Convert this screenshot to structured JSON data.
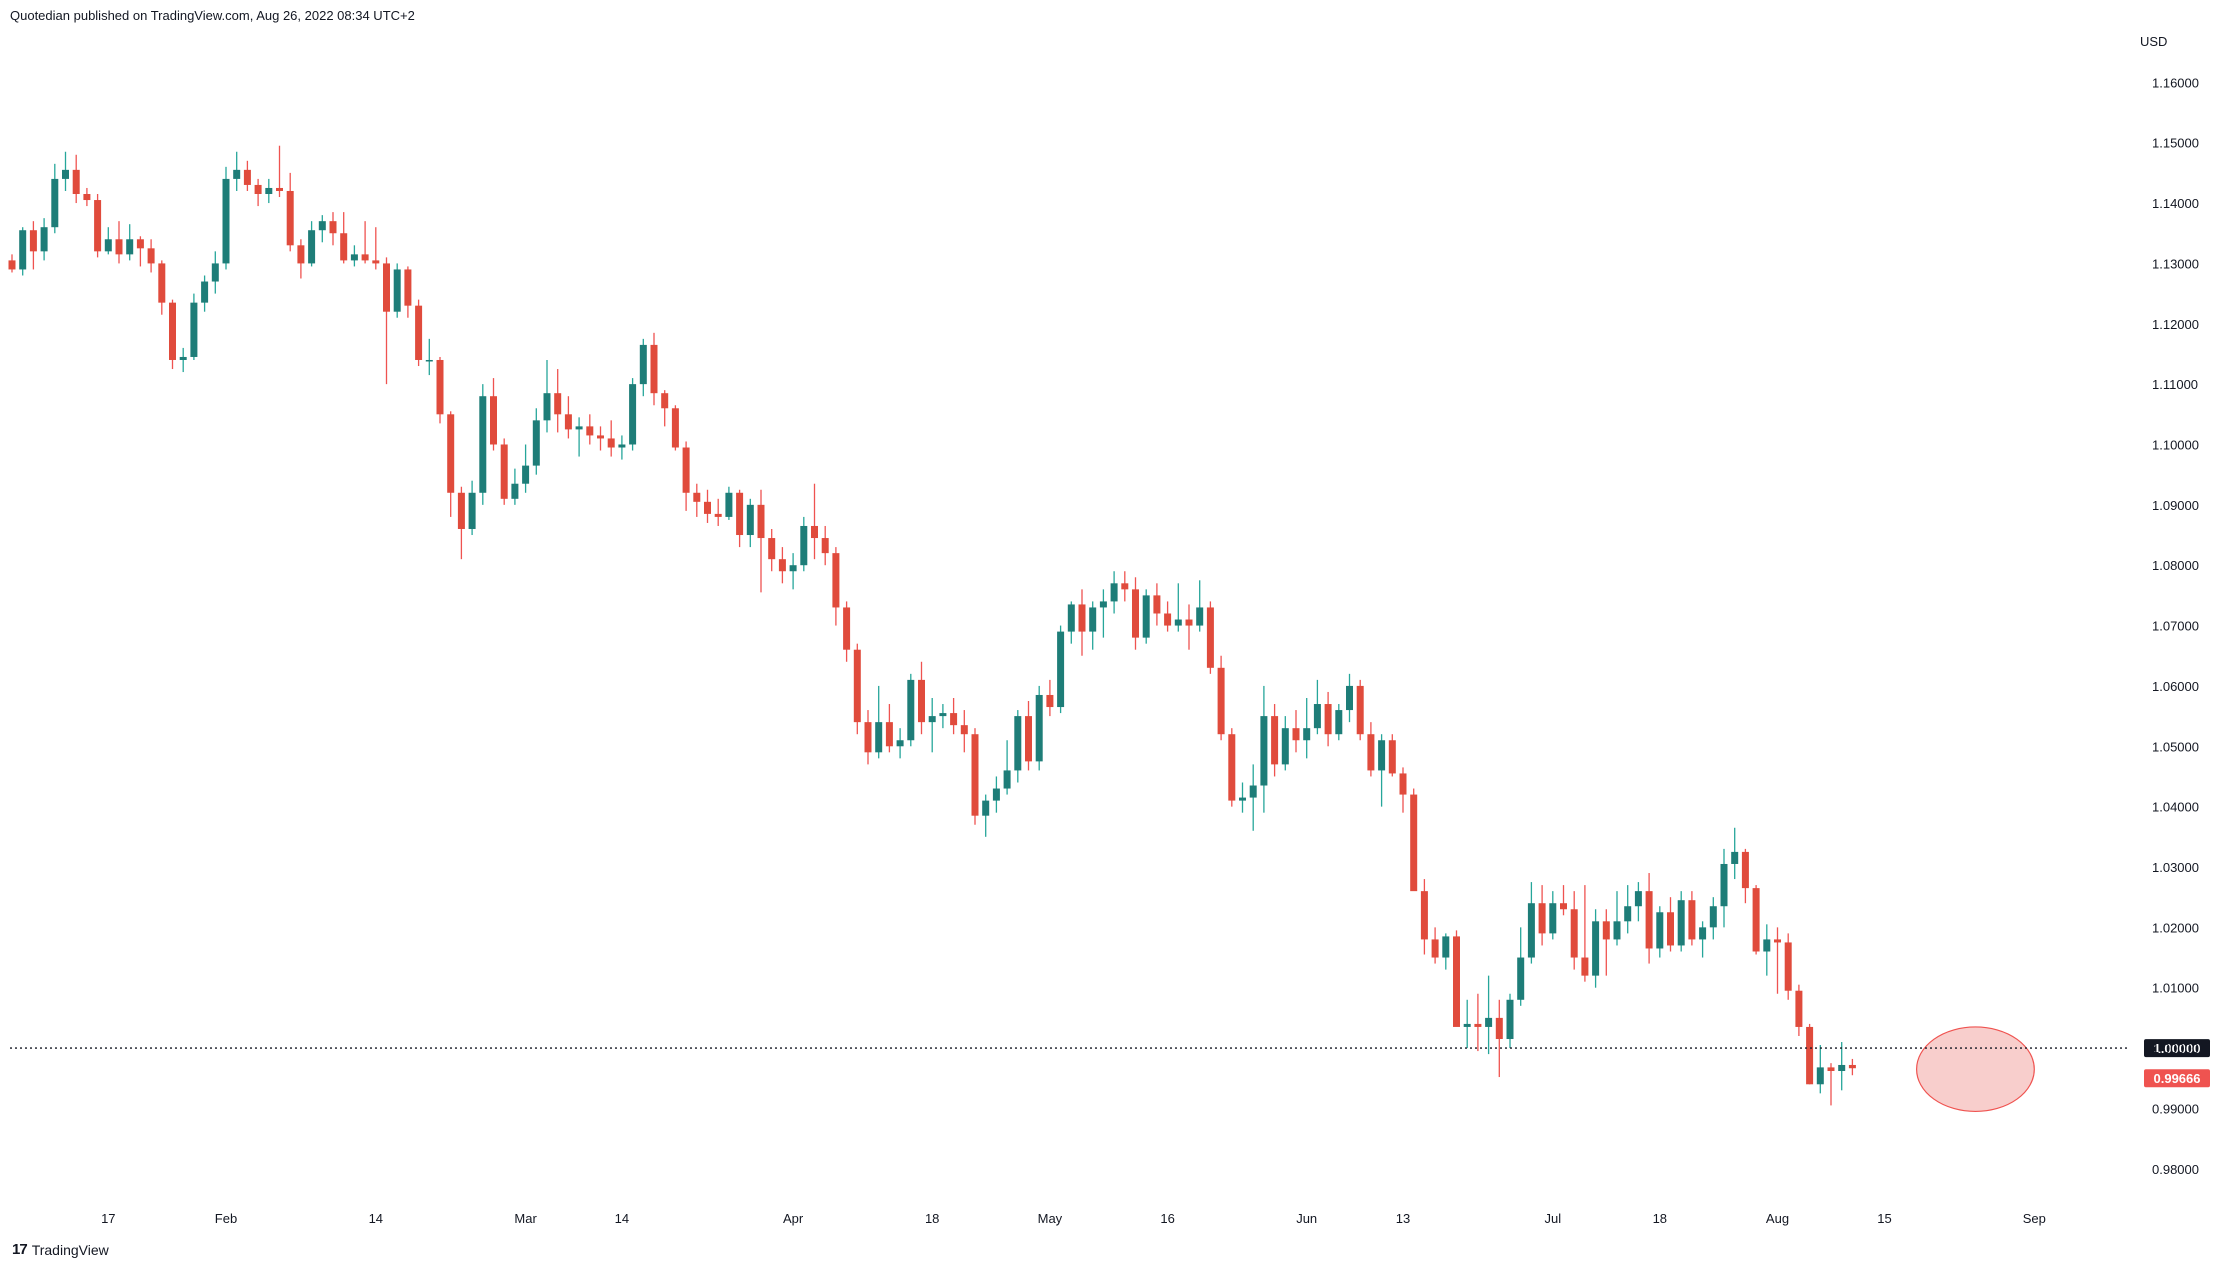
{
  "caption": "Quotedian published on TradingView.com, Aug 26, 2022 08:34 UTC+2",
  "footer_brand": "TradingView",
  "colors": {
    "up": "#26a69a",
    "up_body": "#1e7d78",
    "down": "#ef5350",
    "down_body": "#e04b3c",
    "axis_text": "#131722",
    "price_line": "#131722",
    "last_price_badge": "#ef5350",
    "level_badge": "#131722",
    "highlight_fill": "#f7c6c3",
    "highlight_stroke": "#ef5350"
  },
  "chart_data": {
    "type": "candlestick",
    "currency_label": "USD",
    "ylim": [
      0.974,
      1.1695
    ],
    "y_ticks": [
      "1.16000",
      "1.15000",
      "1.14000",
      "1.13000",
      "1.12000",
      "1.11000",
      "1.10000",
      "1.09000",
      "1.08000",
      "1.07000",
      "1.06000",
      "1.05000",
      "1.04000",
      "1.03000",
      "1.02000",
      "1.01000",
      "1.00000",
      "0.99000",
      "0.98000"
    ],
    "x_labels": [
      {
        "label": "17",
        "index": 9
      },
      {
        "label": "Feb",
        "index": 20
      },
      {
        "label": "14",
        "index": 34
      },
      {
        "label": "Mar",
        "index": 48
      },
      {
        "label": "14",
        "index": 57
      },
      {
        "label": "Apr",
        "index": 73
      },
      {
        "label": "18",
        "index": 86
      },
      {
        "label": "May",
        "index": 97
      },
      {
        "label": "16",
        "index": 108
      },
      {
        "label": "Jun",
        "index": 121
      },
      {
        "label": "13",
        "index": 130
      },
      {
        "label": "Jul",
        "index": 144
      },
      {
        "label": "18",
        "index": 154
      },
      {
        "label": "Aug",
        "index": 165
      },
      {
        "label": "15",
        "index": 175
      },
      {
        "label": "Sep",
        "index": 189
      }
    ],
    "horizontal_level": {
      "value": 1.0,
      "label": "1.00000",
      "style": "dotted"
    },
    "last_price": {
      "value": 0.99666,
      "label": "0.99666"
    },
    "highlight": {
      "center_index": 183.5,
      "center_value": 0.9965,
      "radius_bars": 5.5,
      "radius_value": 0.007
    },
    "candles": [
      {
        "o": 1.1305,
        "h": 1.1315,
        "l": 1.1285,
        "c": 1.129
      },
      {
        "o": 1.129,
        "h": 1.136,
        "l": 1.128,
        "c": 1.1355
      },
      {
        "o": 1.1355,
        "h": 1.137,
        "l": 1.129,
        "c": 1.132
      },
      {
        "o": 1.132,
        "h": 1.1375,
        "l": 1.1305,
        "c": 1.136
      },
      {
        "o": 1.136,
        "h": 1.1465,
        "l": 1.135,
        "c": 1.144
      },
      {
        "o": 1.144,
        "h": 1.1485,
        "l": 1.142,
        "c": 1.1455
      },
      {
        "o": 1.1455,
        "h": 1.148,
        "l": 1.14,
        "c": 1.1415
      },
      {
        "o": 1.1415,
        "h": 1.1425,
        "l": 1.1395,
        "c": 1.1405
      },
      {
        "o": 1.1405,
        "h": 1.1415,
        "l": 1.131,
        "c": 1.132
      },
      {
        "o": 1.132,
        "h": 1.136,
        "l": 1.1315,
        "c": 1.134
      },
      {
        "o": 1.134,
        "h": 1.137,
        "l": 1.13,
        "c": 1.1315
      },
      {
        "o": 1.1315,
        "h": 1.1365,
        "l": 1.1305,
        "c": 1.134
      },
      {
        "o": 1.134,
        "h": 1.1345,
        "l": 1.1295,
        "c": 1.1325
      },
      {
        "o": 1.1325,
        "h": 1.134,
        "l": 1.1285,
        "c": 1.13
      },
      {
        "o": 1.13,
        "h": 1.1305,
        "l": 1.1215,
        "c": 1.1235
      },
      {
        "o": 1.1235,
        "h": 1.124,
        "l": 1.1125,
        "c": 1.114
      },
      {
        "o": 1.114,
        "h": 1.116,
        "l": 1.112,
        "c": 1.1145
      },
      {
        "o": 1.1145,
        "h": 1.125,
        "l": 1.114,
        "c": 1.1235
      },
      {
        "o": 1.1235,
        "h": 1.128,
        "l": 1.122,
        "c": 1.127
      },
      {
        "o": 1.127,
        "h": 1.132,
        "l": 1.125,
        "c": 1.13
      },
      {
        "o": 1.13,
        "h": 1.146,
        "l": 1.129,
        "c": 1.144
      },
      {
        "o": 1.144,
        "h": 1.1485,
        "l": 1.142,
        "c": 1.1455
      },
      {
        "o": 1.1455,
        "h": 1.147,
        "l": 1.142,
        "c": 1.143
      },
      {
        "o": 1.143,
        "h": 1.144,
        "l": 1.1395,
        "c": 1.1415
      },
      {
        "o": 1.1415,
        "h": 1.144,
        "l": 1.14,
        "c": 1.1425
      },
      {
        "o": 1.1425,
        "h": 1.1495,
        "l": 1.141,
        "c": 1.142
      },
      {
        "o": 1.142,
        "h": 1.145,
        "l": 1.132,
        "c": 1.133
      },
      {
        "o": 1.133,
        "h": 1.134,
        "l": 1.1275,
        "c": 1.13
      },
      {
        "o": 1.13,
        "h": 1.137,
        "l": 1.1295,
        "c": 1.1355
      },
      {
        "o": 1.1355,
        "h": 1.138,
        "l": 1.1335,
        "c": 1.137
      },
      {
        "o": 1.137,
        "h": 1.1385,
        "l": 1.133,
        "c": 1.135
      },
      {
        "o": 1.135,
        "h": 1.1385,
        "l": 1.13,
        "c": 1.1305
      },
      {
        "o": 1.1305,
        "h": 1.133,
        "l": 1.1295,
        "c": 1.1315
      },
      {
        "o": 1.1315,
        "h": 1.137,
        "l": 1.13,
        "c": 1.1305
      },
      {
        "o": 1.1305,
        "h": 1.136,
        "l": 1.129,
        "c": 1.13
      },
      {
        "o": 1.13,
        "h": 1.131,
        "l": 1.11,
        "c": 1.122
      },
      {
        "o": 1.122,
        "h": 1.13,
        "l": 1.121,
        "c": 1.129
      },
      {
        "o": 1.129,
        "h": 1.1295,
        "l": 1.121,
        "c": 1.123
      },
      {
        "o": 1.123,
        "h": 1.124,
        "l": 1.113,
        "c": 1.114
      },
      {
        "o": 1.114,
        "h": 1.1175,
        "l": 1.1115,
        "c": 1.114
      },
      {
        "o": 1.114,
        "h": 1.1145,
        "l": 1.1035,
        "c": 1.105
      },
      {
        "o": 1.105,
        "h": 1.1055,
        "l": 1.088,
        "c": 1.092
      },
      {
        "o": 1.092,
        "h": 1.093,
        "l": 1.081,
        "c": 1.086
      },
      {
        "o": 1.086,
        "h": 1.094,
        "l": 1.085,
        "c": 1.092
      },
      {
        "o": 1.092,
        "h": 1.11,
        "l": 1.09,
        "c": 1.108
      },
      {
        "o": 1.108,
        "h": 1.111,
        "l": 1.099,
        "c": 1.1
      },
      {
        "o": 1.1,
        "h": 1.101,
        "l": 1.09,
        "c": 1.091
      },
      {
        "o": 1.091,
        "h": 1.096,
        "l": 1.09,
        "c": 1.0935
      },
      {
        "o": 1.0935,
        "h": 1.1,
        "l": 1.092,
        "c": 1.0965
      },
      {
        "o": 1.0965,
        "h": 1.106,
        "l": 1.095,
        "c": 1.104
      },
      {
        "o": 1.104,
        "h": 1.114,
        "l": 1.102,
        "c": 1.1085
      },
      {
        "o": 1.1085,
        "h": 1.1125,
        "l": 1.102,
        "c": 1.105
      },
      {
        "o": 1.105,
        "h": 1.108,
        "l": 1.101,
        "c": 1.1025
      },
      {
        "o": 1.1025,
        "h": 1.1045,
        "l": 1.098,
        "c": 1.103
      },
      {
        "o": 1.103,
        "h": 1.105,
        "l": 1.1,
        "c": 1.1015
      },
      {
        "o": 1.1015,
        "h": 1.103,
        "l": 1.099,
        "c": 1.101
      },
      {
        "o": 1.101,
        "h": 1.104,
        "l": 1.098,
        "c": 1.0995
      },
      {
        "o": 1.0995,
        "h": 1.1015,
        "l": 1.0975,
        "c": 1.1
      },
      {
        "o": 1.1,
        "h": 1.111,
        "l": 1.099,
        "c": 1.11
      },
      {
        "o": 1.11,
        "h": 1.1175,
        "l": 1.108,
        "c": 1.1165
      },
      {
        "o": 1.1165,
        "h": 1.1185,
        "l": 1.1065,
        "c": 1.1085
      },
      {
        "o": 1.1085,
        "h": 1.109,
        "l": 1.103,
        "c": 1.106
      },
      {
        "o": 1.106,
        "h": 1.1065,
        "l": 1.099,
        "c": 1.0995
      },
      {
        "o": 1.0995,
        "h": 1.1005,
        "l": 1.089,
        "c": 1.092
      },
      {
        "o": 1.092,
        "h": 1.0935,
        "l": 1.088,
        "c": 1.0905
      },
      {
        "o": 1.0905,
        "h": 1.0925,
        "l": 1.087,
        "c": 1.0885
      },
      {
        "o": 1.0885,
        "h": 1.091,
        "l": 1.0865,
        "c": 1.088
      },
      {
        "o": 1.088,
        "h": 1.093,
        "l": 1.0875,
        "c": 1.092
      },
      {
        "o": 1.092,
        "h": 1.0925,
        "l": 1.083,
        "c": 1.085
      },
      {
        "o": 1.085,
        "h": 1.091,
        "l": 1.083,
        "c": 1.09
      },
      {
        "o": 1.09,
        "h": 1.0925,
        "l": 1.0755,
        "c": 1.0845
      },
      {
        "o": 1.0845,
        "h": 1.086,
        "l": 1.079,
        "c": 1.081
      },
      {
        "o": 1.081,
        "h": 1.083,
        "l": 1.077,
        "c": 1.079
      },
      {
        "o": 1.079,
        "h": 1.082,
        "l": 1.076,
        "c": 1.08
      },
      {
        "o": 1.08,
        "h": 1.088,
        "l": 1.079,
        "c": 1.0865
      },
      {
        "o": 1.0865,
        "h": 1.0935,
        "l": 1.081,
        "c": 1.0845
      },
      {
        "o": 1.0845,
        "h": 1.0865,
        "l": 1.08,
        "c": 1.082
      },
      {
        "o": 1.082,
        "h": 1.083,
        "l": 1.07,
        "c": 1.073
      },
      {
        "o": 1.073,
        "h": 1.074,
        "l": 1.064,
        "c": 1.066
      },
      {
        "o": 1.066,
        "h": 1.067,
        "l": 1.052,
        "c": 1.054
      },
      {
        "o": 1.054,
        "h": 1.056,
        "l": 1.047,
        "c": 1.049
      },
      {
        "o": 1.049,
        "h": 1.06,
        "l": 1.048,
        "c": 1.054
      },
      {
        "o": 1.054,
        "h": 1.057,
        "l": 1.049,
        "c": 1.05
      },
      {
        "o": 1.05,
        "h": 1.053,
        "l": 1.048,
        "c": 1.051
      },
      {
        "o": 1.051,
        "h": 1.062,
        "l": 1.05,
        "c": 1.061
      },
      {
        "o": 1.061,
        "h": 1.064,
        "l": 1.052,
        "c": 1.054
      },
      {
        "o": 1.054,
        "h": 1.058,
        "l": 1.049,
        "c": 1.055
      },
      {
        "o": 1.055,
        "h": 1.057,
        "l": 1.053,
        "c": 1.0555
      },
      {
        "o": 1.0555,
        "h": 1.058,
        "l": 1.052,
        "c": 1.0535
      },
      {
        "o": 1.0535,
        "h": 1.056,
        "l": 1.049,
        "c": 1.052
      },
      {
        "o": 1.052,
        "h": 1.053,
        "l": 1.037,
        "c": 1.0385
      },
      {
        "o": 1.0385,
        "h": 1.042,
        "l": 1.035,
        "c": 1.041
      },
      {
        "o": 1.041,
        "h": 1.045,
        "l": 1.039,
        "c": 1.043
      },
      {
        "o": 1.043,
        "h": 1.051,
        "l": 1.042,
        "c": 1.046
      },
      {
        "o": 1.046,
        "h": 1.056,
        "l": 1.044,
        "c": 1.055
      },
      {
        "o": 1.055,
        "h": 1.0575,
        "l": 1.046,
        "c": 1.0475
      },
      {
        "o": 1.0475,
        "h": 1.06,
        "l": 1.046,
        "c": 1.0585
      },
      {
        "o": 1.0585,
        "h": 1.061,
        "l": 1.055,
        "c": 1.0565
      },
      {
        "o": 1.0565,
        "h": 1.07,
        "l": 1.0555,
        "c": 1.069
      },
      {
        "o": 1.069,
        "h": 1.074,
        "l": 1.067,
        "c": 1.0735
      },
      {
        "o": 1.0735,
        "h": 1.076,
        "l": 1.065,
        "c": 1.069
      },
      {
        "o": 1.069,
        "h": 1.074,
        "l": 1.066,
        "c": 1.073
      },
      {
        "o": 1.073,
        "h": 1.076,
        "l": 1.068,
        "c": 1.074
      },
      {
        "o": 1.074,
        "h": 1.079,
        "l": 1.072,
        "c": 1.077
      },
      {
        "o": 1.077,
        "h": 1.079,
        "l": 1.074,
        "c": 1.076
      },
      {
        "o": 1.076,
        "h": 1.078,
        "l": 1.066,
        "c": 1.068
      },
      {
        "o": 1.068,
        "h": 1.076,
        "l": 1.067,
        "c": 1.075
      },
      {
        "o": 1.075,
        "h": 1.077,
        "l": 1.07,
        "c": 1.072
      },
      {
        "o": 1.072,
        "h": 1.074,
        "l": 1.069,
        "c": 1.07
      },
      {
        "o": 1.07,
        "h": 1.077,
        "l": 1.069,
        "c": 1.071
      },
      {
        "o": 1.071,
        "h": 1.0735,
        "l": 1.066,
        "c": 1.07
      },
      {
        "o": 1.07,
        "h": 1.0775,
        "l": 1.069,
        "c": 1.073
      },
      {
        "o": 1.073,
        "h": 1.074,
        "l": 1.062,
        "c": 1.063
      },
      {
        "o": 1.063,
        "h": 1.065,
        "l": 1.051,
        "c": 1.052
      },
      {
        "o": 1.052,
        "h": 1.053,
        "l": 1.04,
        "c": 1.041
      },
      {
        "o": 1.041,
        "h": 1.044,
        "l": 1.039,
        "c": 1.0415
      },
      {
        "o": 1.0415,
        "h": 1.047,
        "l": 1.036,
        "c": 1.0435
      },
      {
        "o": 1.0435,
        "h": 1.06,
        "l": 1.039,
        "c": 1.055
      },
      {
        "o": 1.055,
        "h": 1.057,
        "l": 1.045,
        "c": 1.047
      },
      {
        "o": 1.047,
        "h": 1.055,
        "l": 1.046,
        "c": 1.053
      },
      {
        "o": 1.053,
        "h": 1.056,
        "l": 1.049,
        "c": 1.051
      },
      {
        "o": 1.051,
        "h": 1.058,
        "l": 1.048,
        "c": 1.053
      },
      {
        "o": 1.053,
        "h": 1.061,
        "l": 1.052,
        "c": 1.057
      },
      {
        "o": 1.057,
        "h": 1.059,
        "l": 1.05,
        "c": 1.052
      },
      {
        "o": 1.052,
        "h": 1.057,
        "l": 1.051,
        "c": 1.056
      },
      {
        "o": 1.056,
        "h": 1.062,
        "l": 1.054,
        "c": 1.06
      },
      {
        "o": 1.06,
        "h": 1.061,
        "l": 1.051,
        "c": 1.052
      },
      {
        "o": 1.052,
        "h": 1.054,
        "l": 1.045,
        "c": 1.046
      },
      {
        "o": 1.046,
        "h": 1.052,
        "l": 1.04,
        "c": 1.051
      },
      {
        "o": 1.051,
        "h": 1.052,
        "l": 1.045,
        "c": 1.0455
      },
      {
        "o": 1.0455,
        "h": 1.0465,
        "l": 1.039,
        "c": 1.042
      },
      {
        "o": 1.042,
        "h": 1.043,
        "l": 1.027,
        "c": 1.026
      },
      {
        "o": 1.026,
        "h": 1.028,
        "l": 1.0155,
        "c": 1.018
      },
      {
        "o": 1.018,
        "h": 1.02,
        "l": 1.014,
        "c": 1.015
      },
      {
        "o": 1.015,
        "h": 1.019,
        "l": 1.013,
        "c": 1.0185
      },
      {
        "o": 1.0185,
        "h": 1.0195,
        "l": 1.004,
        "c": 1.0035
      },
      {
        "o": 1.0035,
        "h": 1.008,
        "l": 1.0,
        "c": 1.004
      },
      {
        "o": 1.004,
        "h": 1.009,
        "l": 0.9995,
        "c": 1.0035
      },
      {
        "o": 1.0035,
        "h": 1.012,
        "l": 0.999,
        "c": 1.005
      },
      {
        "o": 1.005,
        "h": 1.008,
        "l": 0.9952,
        "c": 1.0015
      },
      {
        "o": 1.0015,
        "h": 1.009,
        "l": 1.0,
        "c": 1.008
      },
      {
        "o": 1.008,
        "h": 1.02,
        "l": 1.007,
        "c": 1.015
      },
      {
        "o": 1.015,
        "h": 1.0275,
        "l": 1.014,
        "c": 1.024
      },
      {
        "o": 1.024,
        "h": 1.027,
        "l": 1.017,
        "c": 1.019
      },
      {
        "o": 1.019,
        "h": 1.026,
        "l": 1.018,
        "c": 1.024
      },
      {
        "o": 1.024,
        "h": 1.027,
        "l": 1.022,
        "c": 1.023
      },
      {
        "o": 1.023,
        "h": 1.026,
        "l": 1.013,
        "c": 1.015
      },
      {
        "o": 1.015,
        "h": 1.027,
        "l": 1.011,
        "c": 1.012
      },
      {
        "o": 1.012,
        "h": 1.023,
        "l": 1.01,
        "c": 1.021
      },
      {
        "o": 1.021,
        "h": 1.023,
        "l": 1.012,
        "c": 1.018
      },
      {
        "o": 1.018,
        "h": 1.026,
        "l": 1.017,
        "c": 1.021
      },
      {
        "o": 1.021,
        "h": 1.027,
        "l": 1.019,
        "c": 1.0235
      },
      {
        "o": 1.0235,
        "h": 1.0275,
        "l": 1.021,
        "c": 1.026
      },
      {
        "o": 1.026,
        "h": 1.029,
        "l": 1.014,
        "c": 1.0165
      },
      {
        "o": 1.0165,
        "h": 1.0235,
        "l": 1.015,
        "c": 1.0225
      },
      {
        "o": 1.0225,
        "h": 1.025,
        "l": 1.016,
        "c": 1.017
      },
      {
        "o": 1.017,
        "h": 1.026,
        "l": 1.016,
        "c": 1.0245
      },
      {
        "o": 1.0245,
        "h": 1.026,
        "l": 1.017,
        "c": 1.018
      },
      {
        "o": 1.018,
        "h": 1.021,
        "l": 1.015,
        "c": 1.02
      },
      {
        "o": 1.02,
        "h": 1.025,
        "l": 1.018,
        "c": 1.0235
      },
      {
        "o": 1.0235,
        "h": 1.033,
        "l": 1.02,
        "c": 1.0305
      },
      {
        "o": 1.0305,
        "h": 1.0365,
        "l": 1.028,
        "c": 1.0325
      },
      {
        "o": 1.0325,
        "h": 1.033,
        "l": 1.024,
        "c": 1.0265
      },
      {
        "o": 1.0265,
        "h": 1.027,
        "l": 1.0155,
        "c": 1.016
      },
      {
        "o": 1.016,
        "h": 1.0205,
        "l": 1.012,
        "c": 1.018
      },
      {
        "o": 1.018,
        "h": 1.02,
        "l": 1.009,
        "c": 1.0175
      },
      {
        "o": 1.0175,
        "h": 1.019,
        "l": 1.008,
        "c": 1.0095
      },
      {
        "o": 1.0095,
        "h": 1.0105,
        "l": 1.002,
        "c": 1.0035
      },
      {
        "o": 1.0035,
        "h": 1.004,
        "l": 0.994,
        "c": 0.994
      },
      {
        "o": 0.994,
        "h": 1.0005,
        "l": 0.9925,
        "c": 0.9968
      },
      {
        "o": 0.9968,
        "h": 0.9975,
        "l": 0.9905,
        "c": 0.9962
      },
      {
        "o": 0.9962,
        "h": 1.001,
        "l": 0.993,
        "c": 0.9972
      },
      {
        "o": 0.9972,
        "h": 0.9982,
        "l": 0.9955,
        "c": 0.99666
      }
    ]
  }
}
